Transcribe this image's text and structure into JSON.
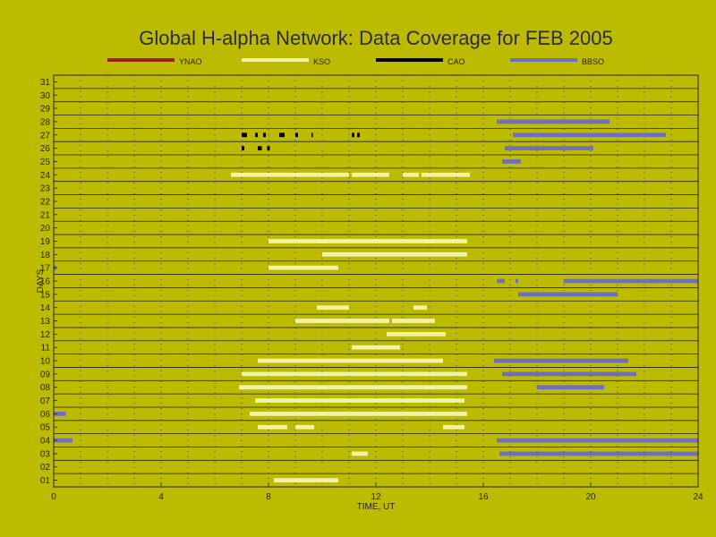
{
  "chart_data": {
    "type": "bar",
    "title": "Global H-alpha Network: Data Coverage for FEB 2005",
    "xlabel": "TIME, UT",
    "ylabel": "DAYS",
    "xlim": [
      0,
      24
    ],
    "ylim": [
      0.5,
      31.5
    ],
    "xticks": [
      0,
      4,
      8,
      12,
      16,
      20,
      24
    ],
    "xtick_labels": [
      "0",
      "4",
      "8",
      "12",
      "16",
      "20",
      "24"
    ],
    "yticks": [
      1,
      2,
      3,
      4,
      5,
      6,
      7,
      8,
      9,
      10,
      11,
      12,
      13,
      14,
      15,
      16,
      17,
      18,
      19,
      20,
      21,
      22,
      23,
      24,
      25,
      26,
      27,
      28,
      29,
      30,
      31
    ],
    "ytick_labels": [
      "01",
      "02",
      "03",
      "04",
      "05",
      "06",
      "07",
      "08",
      "09",
      "10",
      "11",
      "12",
      "13",
      "14",
      "15",
      "16",
      "17",
      "18",
      "19",
      "20",
      "21",
      "22",
      "23",
      "24",
      "25",
      "26",
      "27",
      "28",
      "29",
      "30",
      "31"
    ],
    "grid": true,
    "legend_position": "top",
    "series": [
      {
        "name": "YNAO",
        "color": "#9E1C1C",
        "segments": []
      },
      {
        "name": "KSO",
        "color": "#F2F2A6",
        "segments": [
          {
            "day": 1,
            "start": 8.2,
            "end": 10.6
          },
          {
            "day": 3,
            "start": 11.1,
            "end": 11.7
          },
          {
            "day": 5,
            "start": 7.6,
            "end": 8.7
          },
          {
            "day": 5,
            "start": 9.0,
            "end": 9.7
          },
          {
            "day": 5,
            "start": 14.5,
            "end": 15.3
          },
          {
            "day": 6,
            "start": 7.3,
            "end": 15.4
          },
          {
            "day": 7,
            "start": 7.5,
            "end": 15.3
          },
          {
            "day": 8,
            "start": 6.9,
            "end": 15.4
          },
          {
            "day": 9,
            "start": 7.0,
            "end": 15.4
          },
          {
            "day": 10,
            "start": 7.6,
            "end": 14.5
          },
          {
            "day": 11,
            "start": 11.1,
            "end": 12.9
          },
          {
            "day": 12,
            "start": 12.4,
            "end": 14.6
          },
          {
            "day": 13,
            "start": 9.0,
            "end": 12.5
          },
          {
            "day": 13,
            "start": 12.6,
            "end": 14.2
          },
          {
            "day": 14,
            "start": 9.8,
            "end": 11.0
          },
          {
            "day": 14,
            "start": 13.4,
            "end": 13.9
          },
          {
            "day": 17,
            "start": 8.0,
            "end": 10.6
          },
          {
            "day": 18,
            "start": 10.0,
            "end": 15.4
          },
          {
            "day": 19,
            "start": 8.0,
            "end": 15.4
          },
          {
            "day": 24,
            "start": 6.6,
            "end": 11.0
          },
          {
            "day": 24,
            "start": 11.1,
            "end": 12.5
          },
          {
            "day": 24,
            "start": 13.0,
            "end": 13.6
          },
          {
            "day": 24,
            "start": 13.7,
            "end": 14.5
          },
          {
            "day": 24,
            "start": 14.5,
            "end": 15.5
          }
        ]
      },
      {
        "name": "CAO",
        "color": "#000000",
        "segments": [
          {
            "day": 26,
            "start": 7.0,
            "end": 7.1
          },
          {
            "day": 26,
            "start": 7.6,
            "end": 7.75
          },
          {
            "day": 26,
            "start": 7.95,
            "end": 8.05
          },
          {
            "day": 27,
            "start": 7.0,
            "end": 7.2
          },
          {
            "day": 27,
            "start": 7.5,
            "end": 7.6
          },
          {
            "day": 27,
            "start": 7.8,
            "end": 7.9
          },
          {
            "day": 27,
            "start": 8.4,
            "end": 8.6
          },
          {
            "day": 27,
            "start": 9.0,
            "end": 9.1
          },
          {
            "day": 27,
            "start": 9.6,
            "end": 9.65
          },
          {
            "day": 27,
            "start": 11.1,
            "end": 11.2
          },
          {
            "day": 27,
            "start": 11.3,
            "end": 11.4
          }
        ]
      },
      {
        "name": "BBSO",
        "color": "#6E6EC4",
        "segments": [
          {
            "day": 3,
            "start": 16.6,
            "end": 24.0
          },
          {
            "day": 4,
            "start": 0.0,
            "end": 0.7
          },
          {
            "day": 4,
            "start": 16.5,
            "end": 24.0
          },
          {
            "day": 6,
            "start": 0.0,
            "end": 0.45
          },
          {
            "day": 8,
            "start": 18.0,
            "end": 20.5
          },
          {
            "day": 9,
            "start": 16.7,
            "end": 21.7
          },
          {
            "day": 10,
            "start": 16.4,
            "end": 21.4
          },
          {
            "day": 15,
            "start": 17.3,
            "end": 21.0
          },
          {
            "day": 16,
            "start": 16.5,
            "end": 16.8
          },
          {
            "day": 16,
            "start": 17.2,
            "end": 17.3
          },
          {
            "day": 16,
            "start": 19.0,
            "end": 24.0
          },
          {
            "day": 17,
            "start": 0.0,
            "end": 0.1
          },
          {
            "day": 25,
            "start": 16.7,
            "end": 17.4
          },
          {
            "day": 26,
            "start": 16.8,
            "end": 20.1
          },
          {
            "day": 27,
            "start": 17.1,
            "end": 22.8
          },
          {
            "day": 28,
            "start": 16.5,
            "end": 20.7
          }
        ]
      }
    ]
  }
}
